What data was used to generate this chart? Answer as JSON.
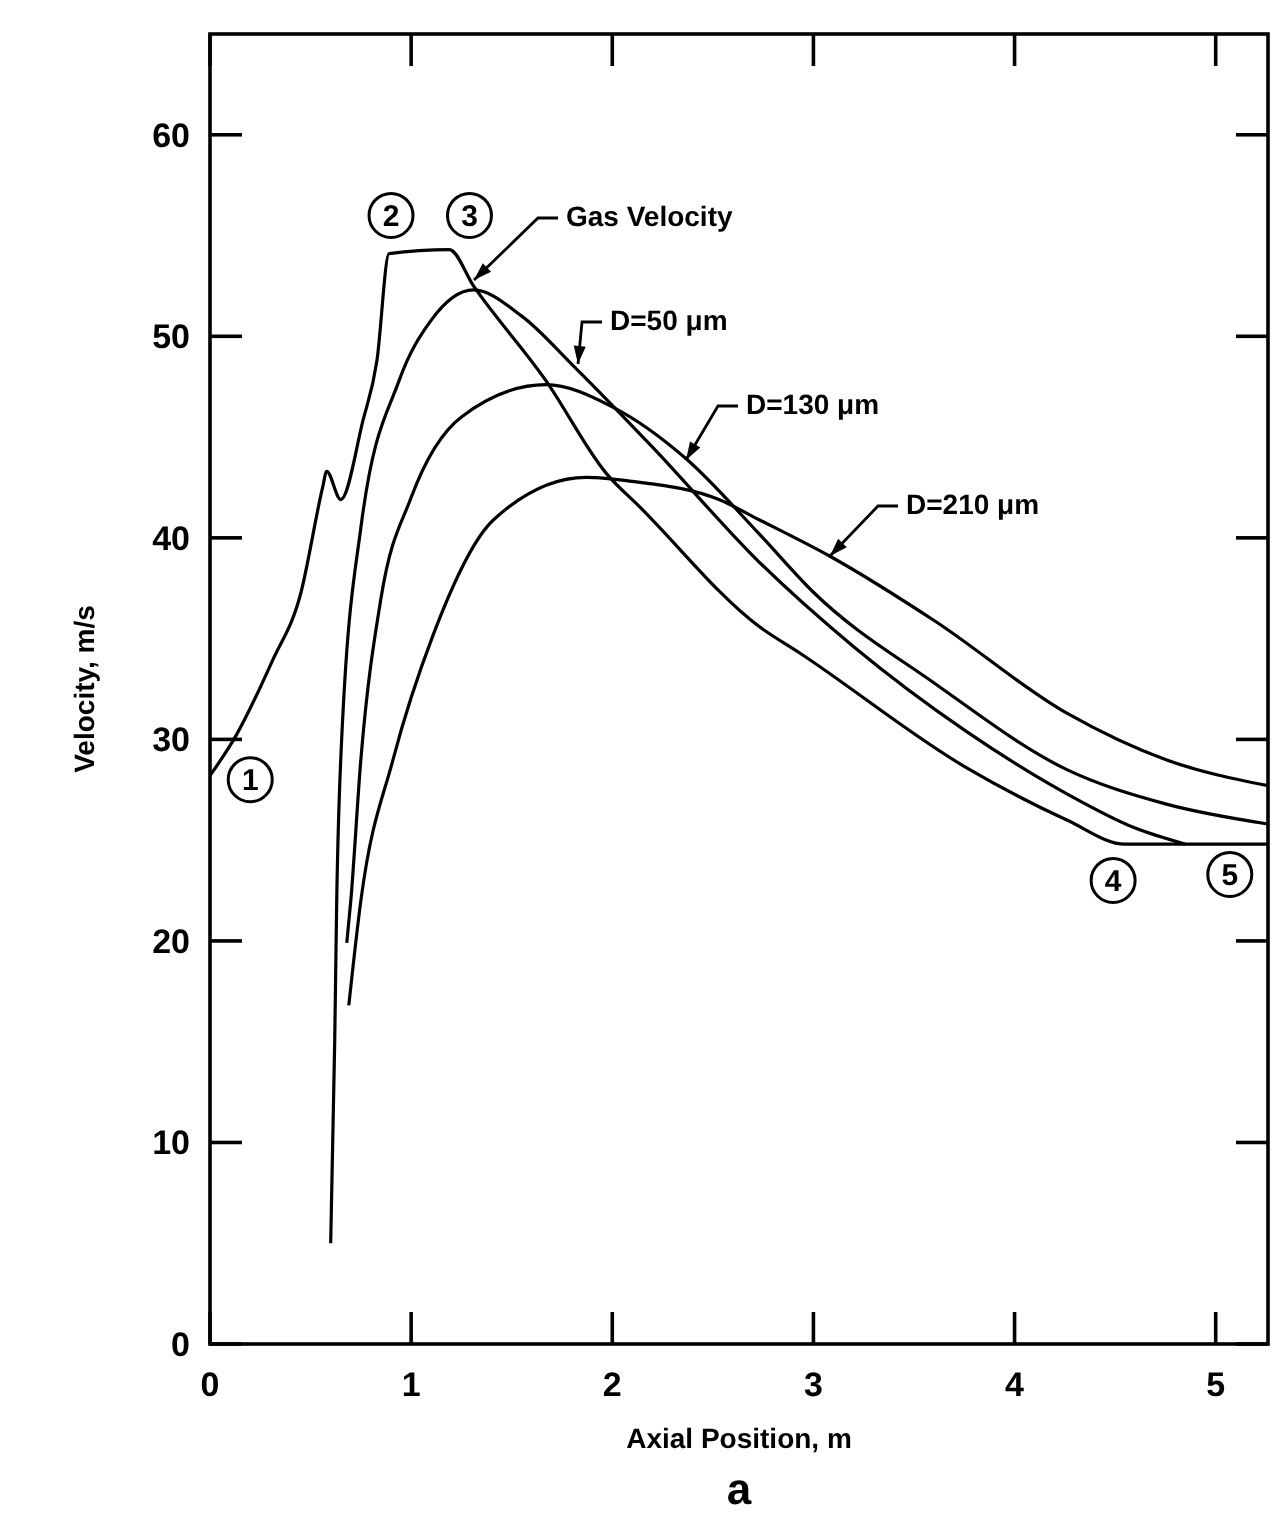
{
  "chart_data": {
    "type": "line",
    "xlabel": "Axial Position, m",
    "ylabel": "Velocity, m/s",
    "xlim": [
      0,
      5.26
    ],
    "ylim": [
      0,
      65
    ],
    "xticks": [
      0,
      1,
      2,
      3,
      4,
      5
    ],
    "yticks": [
      0,
      10,
      20,
      30,
      40,
      50,
      60
    ],
    "grid": false,
    "marker": "none",
    "line_style": "solid",
    "series": [
      {
        "name": "Gas Velocity",
        "color": "#000000",
        "x": [
          0,
          0.13,
          0.31,
          0.45,
          0.56,
          0.58,
          0.65,
          0.76,
          0.83,
          0.89,
          1.19,
          1.31,
          1.67,
          1.97,
          2.14,
          2.73,
          2.93,
          3.76,
          4.26,
          4.55,
          5.26
        ],
        "values": [
          28.2,
          30.2,
          33.9,
          37.2,
          42.5,
          43.3,
          41.9,
          45.8,
          48.8,
          54.1,
          54.3,
          52.5,
          47.8,
          43.2,
          41.5,
          35.6,
          34.3,
          28.6,
          26.0,
          24.8,
          24.8
        ]
      },
      {
        "name": "D=50 μm",
        "color": "#000000",
        "x": [
          0.6,
          0.62,
          0.63,
          0.65,
          0.75,
          0.94,
          1.1,
          1.31,
          1.55,
          1.81,
          2.2,
          2.73,
          3.2,
          3.76,
          4.26,
          4.6,
          4.85
        ],
        "values": [
          5,
          15,
          22,
          29,
          40.5,
          47.8,
          50.8,
          52.3,
          51,
          48.5,
          44.5,
          38.8,
          34.6,
          30.4,
          27.3,
          25.6,
          24.8
        ]
      },
      {
        "name": "D=130 μm",
        "color": "#000000",
        "x": [
          0.68,
          0.7,
          0.75,
          0.85,
          1.0,
          1.25,
          1.67,
          2.0,
          2.37,
          2.73,
          3.0,
          3.6,
          4.26,
          4.75,
          5.26
        ],
        "values": [
          19.9,
          22,
          29,
          37,
          42,
          46,
          47.6,
          46.5,
          43.9,
          40.2,
          37.3,
          32.8,
          28.5,
          26.8,
          25.8
        ]
      },
      {
        "name": "D=210 μm",
        "color": "#000000",
        "x": [
          0.69,
          0.75,
          0.91,
          1.11,
          1.41,
          1.87,
          2.1,
          2.53,
          2.73,
          3.08,
          3.6,
          4.26,
          4.75,
          5.26
        ],
        "values": [
          16.8,
          22,
          29,
          35.2,
          40.9,
          43,
          42.8,
          41.9,
          40.9,
          39.1,
          35.9,
          31.3,
          29.0,
          27.7
        ]
      }
    ],
    "annotations": [
      {
        "text": "1",
        "x": 0.2,
        "y": 28
      },
      {
        "text": "2",
        "x": 0.9,
        "y": 56
      },
      {
        "text": "3",
        "x": 1.29,
        "y": 56
      },
      {
        "text": "4",
        "x": 4.49,
        "y": 23
      },
      {
        "text": "5",
        "x": 5.07,
        "y": 23.3
      },
      "a"
    ]
  }
}
